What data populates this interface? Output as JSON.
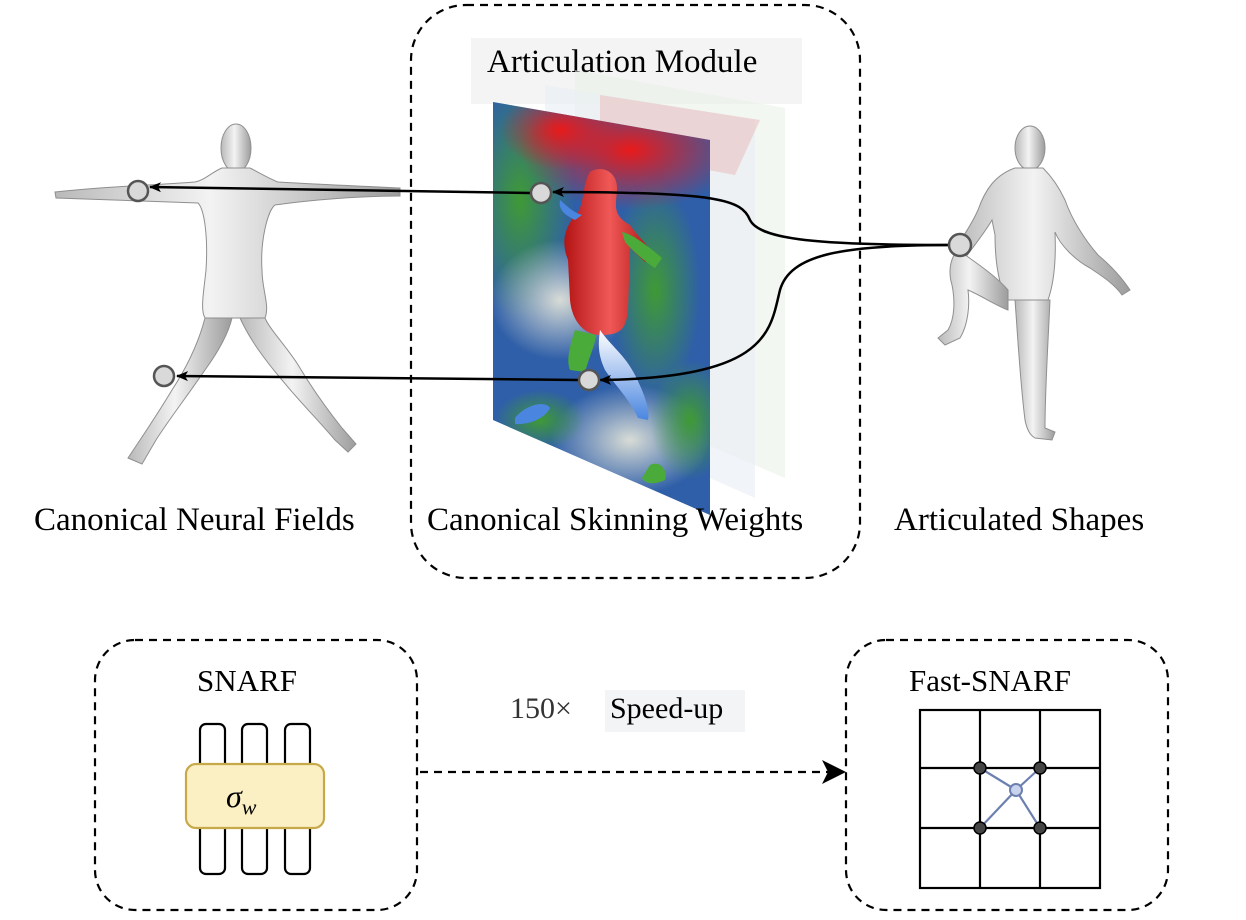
{
  "module_title": "Articulation Module",
  "labels": {
    "canonical_fields": "Canonical Neural Fields",
    "skinning_weights": "Canonical Skinning Weights",
    "articulated": "Articulated Shapes"
  },
  "bottom": {
    "snarf_title": "SNARF",
    "sigma_symbol": "σ",
    "sigma_subscript": "w",
    "speed_number": "150×",
    "speed_text": "Speed-up",
    "fast_snarf_title": "Fast-SNARF"
  },
  "colors": {
    "weight_red": "#d81e1e",
    "weight_green": "#3d8f34",
    "weight_blue": "#2f5fa8",
    "mlp_fill": "#fbefc4",
    "mlp_border": "#c7a94a",
    "grid_line_blue": "#6c80b0",
    "point_fill_light": "#c9d3ee"
  }
}
